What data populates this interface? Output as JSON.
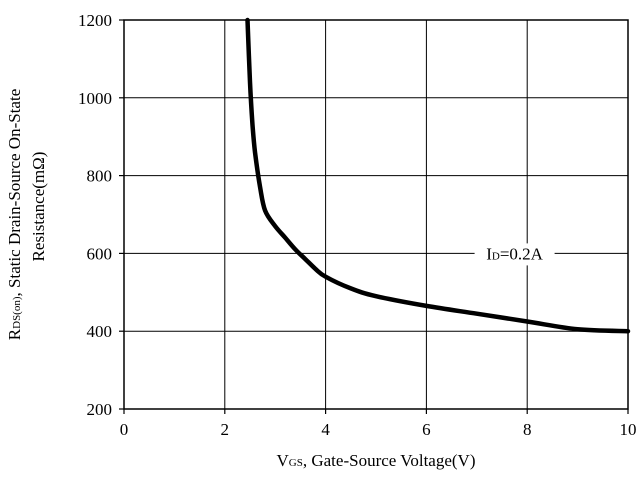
{
  "chart_data": {
    "type": "line",
    "x_axis": {
      "label_main": "V",
      "label_sub": "GS",
      "label_rest": ", Gate-Source Voltage(V)",
      "range": [
        0,
        10
      ],
      "ticks": [
        "0",
        "2",
        "4",
        "6",
        "8",
        "10"
      ],
      "tick_values": [
        0,
        2,
        4,
        6,
        8,
        10
      ]
    },
    "y_axis": {
      "label_line1_main": "R",
      "label_line1_sub": "DS(on)",
      "label_line1_rest": ", Static Drain-Source On-State",
      "label_line2": "Resistance(mΩ)",
      "range": [
        200,
        1200
      ],
      "ticks": [
        "200",
        "400",
        "600",
        "800",
        "1000",
        "1200"
      ],
      "tick_values": [
        200,
        400,
        600,
        800,
        1000,
        1200
      ]
    },
    "grid": true,
    "series": [
      {
        "name": "ID=0.2A",
        "x": [
          2.45,
          2.5,
          2.55,
          2.6,
          2.7,
          2.8,
          3.0,
          3.2,
          3.4,
          3.6,
          3.8,
          4.0,
          4.5,
          5.0,
          6.0,
          7.0,
          8.0,
          9.0,
          10.0
        ],
        "y": [
          1200,
          1040,
          930,
          860,
          770,
          710,
          670,
          640,
          610,
          585,
          560,
          540,
          510,
          490,
          465,
          445,
          425,
          405,
          400
        ]
      }
    ],
    "annotation": {
      "main": "I",
      "sub": "D",
      "rest": "=0.2A"
    }
  }
}
